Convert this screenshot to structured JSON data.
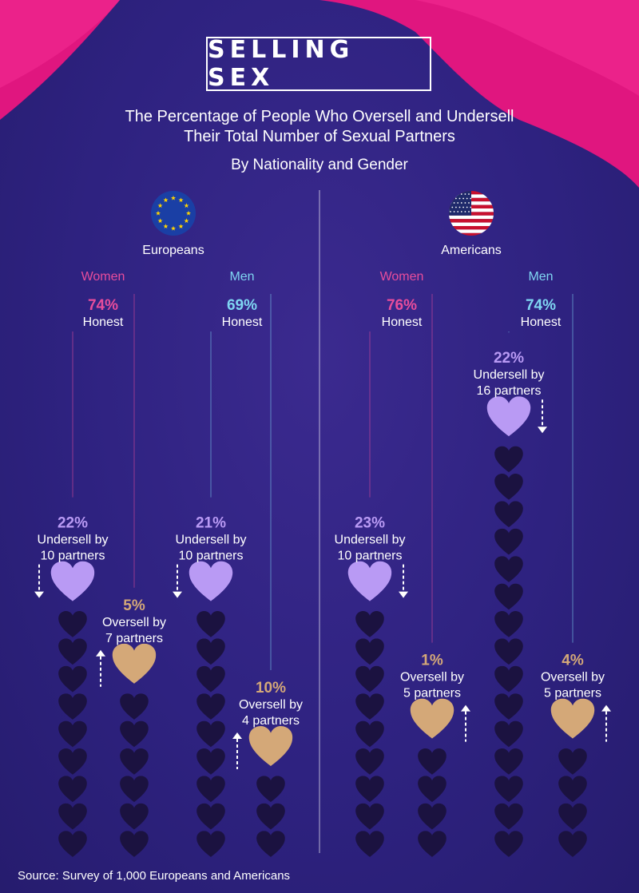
{
  "header": {
    "title": "SELLING SEX",
    "subtitle_line1": "The Percentage of People Who Oversell and Undersell",
    "subtitle_line2": "Their Total Number of Sexual Partners",
    "subtitle2": "By Nationality and Gender"
  },
  "source": "Source: Survey of 1,000 Europeans and Americans",
  "colors": {
    "women": "#e84d9c",
    "men": "#7fd6f2",
    "undersell_heart": "#b99af4",
    "oversell_heart": "#d4a878",
    "stack_heart": "#1b1240",
    "accent_pink": "#e0167f"
  },
  "icons": {
    "europe": "eu-flag-icon",
    "america": "us-flag-icon",
    "undersell_arrow": "arrow-down-icon",
    "oversell_arrow": "arrow-up-icon"
  },
  "chart_data": {
    "type": "bar",
    "groups": [
      {
        "nationality": "Europeans",
        "segments": [
          {
            "gender": "Women",
            "honest_pct": "74%",
            "honest_label": "Honest",
            "undersell": {
              "pct": "22%",
              "label": "Undersell by",
              "amount": "10 partners",
              "partners": 10
            },
            "oversell": {
              "pct": "5%",
              "label": "Oversell by",
              "amount": "7 partners",
              "partners": 7
            }
          },
          {
            "gender": "Men",
            "honest_pct": "69%",
            "honest_label": "Honest",
            "undersell": {
              "pct": "21%",
              "label": "Undersell by",
              "amount": "10 partners",
              "partners": 10
            },
            "oversell": {
              "pct": "10%",
              "label": "Oversell by",
              "amount": "4 partners",
              "partners": 4
            }
          }
        ]
      },
      {
        "nationality": "Americans",
        "segments": [
          {
            "gender": "Women",
            "honest_pct": "76%",
            "honest_label": "Honest",
            "undersell": {
              "pct": "23%",
              "label": "Undersell by",
              "amount": "10 partners",
              "partners": 10
            },
            "oversell": {
              "pct": "1%",
              "label": "Oversell by",
              "amount": "5 partners",
              "partners": 5
            }
          },
          {
            "gender": "Men",
            "honest_pct": "74%",
            "honest_label": "Honest",
            "undersell": {
              "pct": "22%",
              "label": "Undersell by",
              "amount": "16 partners",
              "partners": 16
            },
            "oversell": {
              "pct": "4%",
              "label": "Oversell by",
              "amount": "5 partners",
              "partners": 5
            }
          }
        ]
      }
    ]
  }
}
